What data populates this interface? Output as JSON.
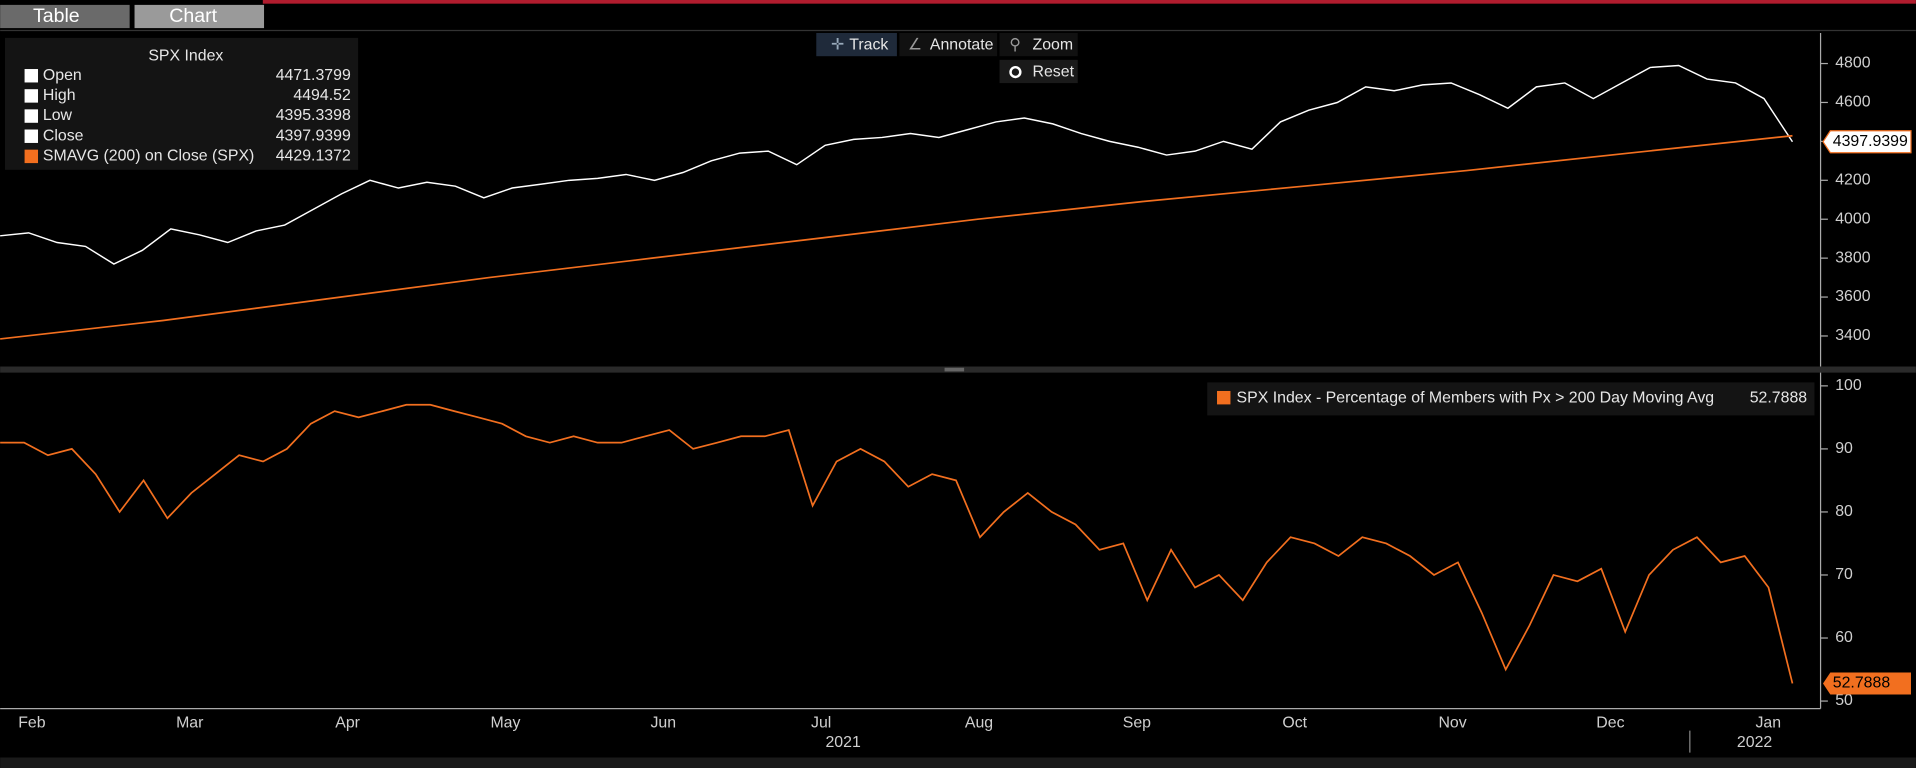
{
  "tabs": [
    "Table",
    "Chart"
  ],
  "toolbar": [
    "Track",
    "Annotate",
    "Zoom",
    "Reset"
  ],
  "x_axis": {
    "months": [
      "Feb",
      "Mar",
      "Apr",
      "May",
      "Jun",
      "Jul",
      "Aug",
      "Sep",
      "Oct",
      "Nov",
      "Dec",
      "Jan"
    ],
    "years": [
      "2021",
      "2022"
    ]
  },
  "chart_data": [
    {
      "type": "line",
      "title": "SPX Index",
      "legend": [
        {
          "name": "Open",
          "value": 4471.3799
        },
        {
          "name": "High",
          "value": 4494.52
        },
        {
          "name": "Low",
          "value": 4395.3398
        },
        {
          "name": "Close",
          "value": 4397.9399
        },
        {
          "name": "SMAVG (200)  on Close (SPX)",
          "value": 4429.1372
        }
      ],
      "ylim": [
        3243,
        4957
      ],
      "yticks": [
        3400,
        3600,
        3800,
        4000,
        4200,
        4400,
        4600,
        4800
      ],
      "series": [
        {
          "name": "Close",
          "color": "#ffffff",
          "values": [
            3915,
            3930,
            3880,
            3860,
            3770,
            3840,
            3950,
            3920,
            3880,
            3940,
            3970,
            4050,
            4130,
            4200,
            4160,
            4190,
            4170,
            4110,
            4160,
            4180,
            4200,
            4210,
            4230,
            4200,
            4240,
            4300,
            4340,
            4350,
            4280,
            4380,
            4410,
            4420,
            4440,
            4420,
            4460,
            4500,
            4520,
            4490,
            4440,
            4400,
            4370,
            4330,
            4350,
            4400,
            4360,
            4500,
            4560,
            4600,
            4680,
            4660,
            4690,
            4700,
            4640,
            4570,
            4680,
            4700,
            4620,
            4700,
            4780,
            4790,
            4720,
            4700,
            4620,
            4397.9399
          ]
        },
        {
          "name": "SMAVG (200)  on Close (SPX)",
          "color": "#f26f1f",
          "values": [
            3385,
            3480,
            3590,
            3700,
            3800,
            3900,
            4000,
            4090,
            4170,
            4250,
            4340,
            4429.1372
          ]
        }
      ]
    },
    {
      "type": "line",
      "legend_name": "SPX Index - Percentage of Members with Px > 200 Day Moving Avg",
      "ylim": [
        48.8,
        102.1
      ],
      "yticks": [
        50,
        60,
        70,
        80,
        90,
        100
      ],
      "series": [
        {
          "name": "SPX Index - Percentage of Members with Px > 200 Day Moving Avg",
          "color": "#f26f1f",
          "values": [
            91,
            91,
            89,
            90,
            86,
            80,
            85,
            79,
            83,
            86,
            89,
            88,
            90,
            94,
            96,
            95,
            96,
            97,
            97,
            96,
            95,
            94,
            92,
            91,
            92,
            91,
            91,
            92,
            93,
            90,
            91,
            92,
            92,
            93,
            81,
            88,
            90,
            88,
            84,
            86,
            85,
            76,
            80,
            83,
            80,
            78,
            74,
            75,
            66,
            74,
            68,
            70,
            66,
            72,
            76,
            75,
            73,
            76,
            75,
            73,
            70,
            72,
            64,
            55,
            62,
            70,
            69,
            71,
            61,
            70,
            74,
            76,
            72,
            73,
            68,
            52.7888
          ]
        }
      ]
    }
  ]
}
